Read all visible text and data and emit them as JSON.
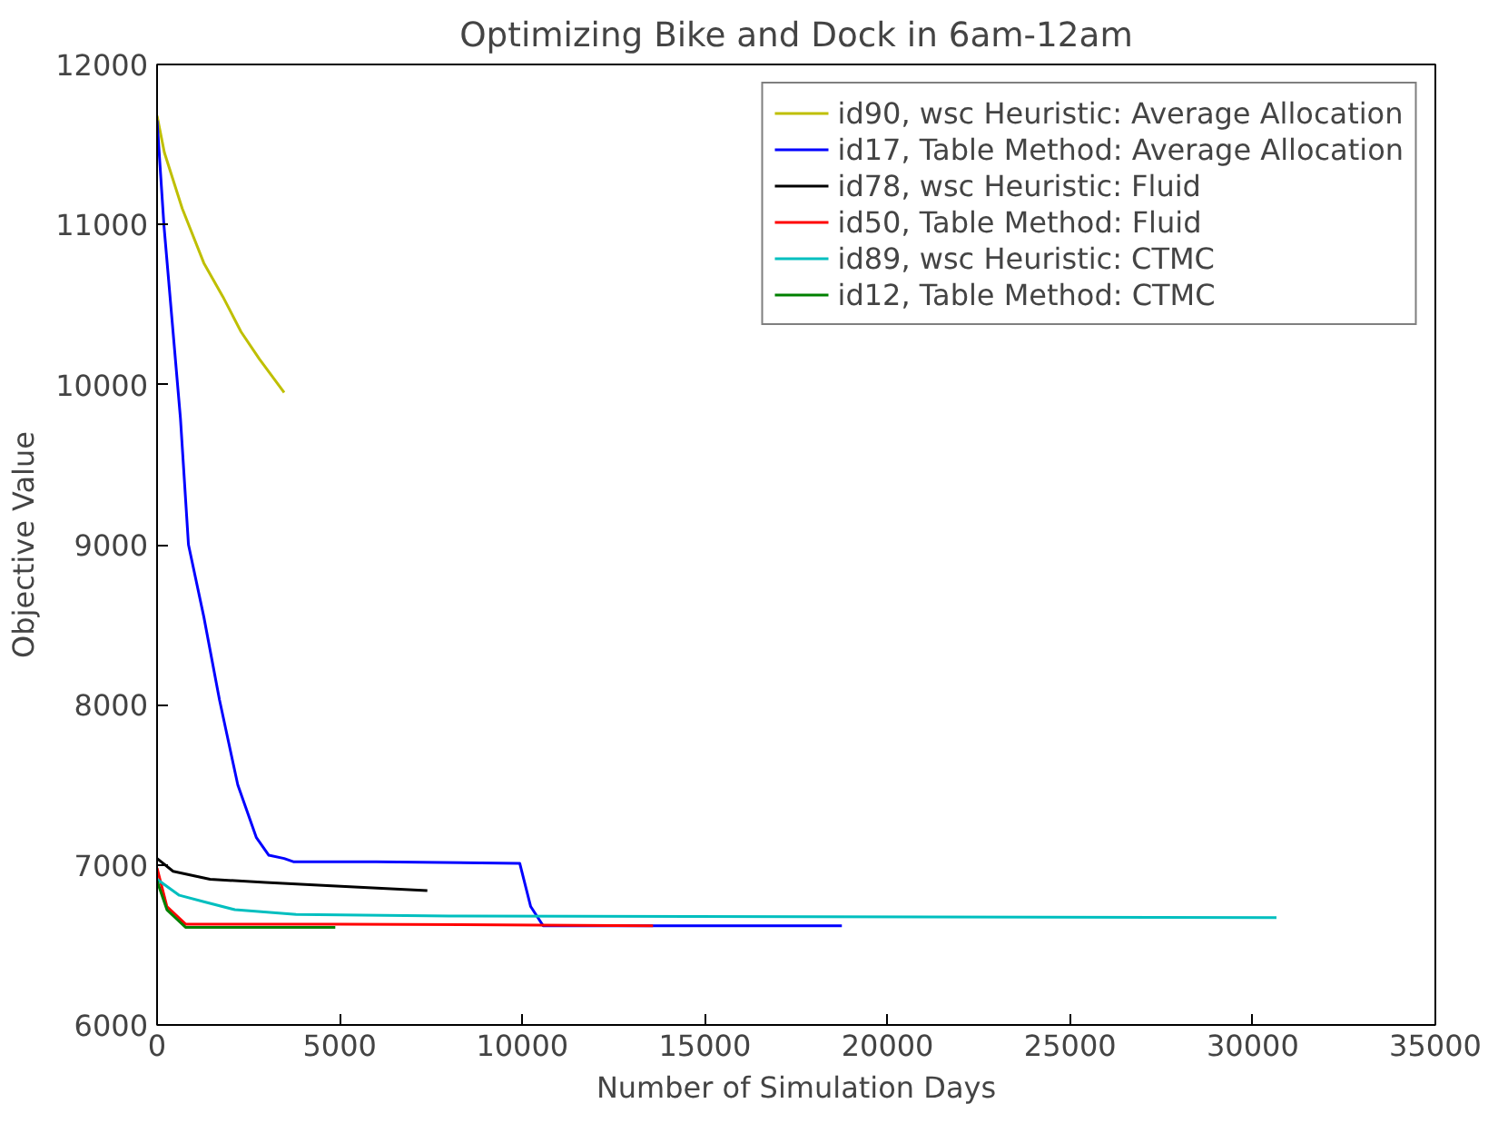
{
  "chart_data": {
    "type": "line",
    "title": "Optimizing Bike and Dock in 6am-12am",
    "xlabel": "Number of Simulation Days",
    "ylabel": "Objective Value",
    "xlim": [
      0,
      35000
    ],
    "ylim": [
      6000,
      12000
    ],
    "xticks": [
      0,
      5000,
      10000,
      15000,
      20000,
      25000,
      30000,
      35000
    ],
    "yticks": [
      6000,
      7000,
      8000,
      9000,
      10000,
      11000,
      12000
    ],
    "grid": false,
    "legend": "top right",
    "marker": "none",
    "line_style": "solid",
    "series": [
      {
        "name": "id90, wsc Heuristic: Average Allocation",
        "color": "#bfbf00",
        "x": [
          0,
          200,
          690,
          1280,
          1800,
          2300,
          2800,
          3480
        ],
        "values": [
          11680,
          11450,
          11100,
          10760,
          10550,
          10330,
          10160,
          9950
        ]
      },
      {
        "name": "id17, Table Method: Average Allocation",
        "color": "#0000ff",
        "x": [
          0,
          190,
          640,
          860,
          1280,
          1710,
          2210,
          2720,
          3060,
          3480,
          3730,
          6000,
          9930,
          10230,
          10570,
          18750
        ],
        "values": [
          11650,
          10990,
          9790,
          9000,
          8550,
          8030,
          7500,
          7170,
          7060,
          7040,
          7020,
          7020,
          7010,
          6740,
          6620,
          6620
        ]
      },
      {
        "name": "id78, wsc Heuristic: Fluid",
        "color": "#000000",
        "x": [
          0,
          440,
          1450,
          2970,
          4660,
          7400
        ],
        "values": [
          7040,
          6960,
          6910,
          6890,
          6870,
          6840
        ]
      },
      {
        "name": "id50, Table Method: Fluid",
        "color": "#ff0000",
        "x": [
          0,
          270,
          780,
          5000,
          13580
        ],
        "values": [
          6980,
          6740,
          6630,
          6630,
          6620
        ]
      },
      {
        "name": "id89, wsc Heuristic: CTMC",
        "color": "#00bfbf",
        "x": [
          0,
          610,
          1280,
          2130,
          3810,
          8000,
          30650
        ],
        "values": [
          6910,
          6810,
          6770,
          6720,
          6690,
          6680,
          6670
        ]
      },
      {
        "name": "id12, Table Method: CTMC",
        "color": "#008000",
        "x": [
          0,
          270,
          780,
          4880
        ],
        "values": [
          6900,
          6720,
          6610,
          6610
        ]
      }
    ]
  }
}
